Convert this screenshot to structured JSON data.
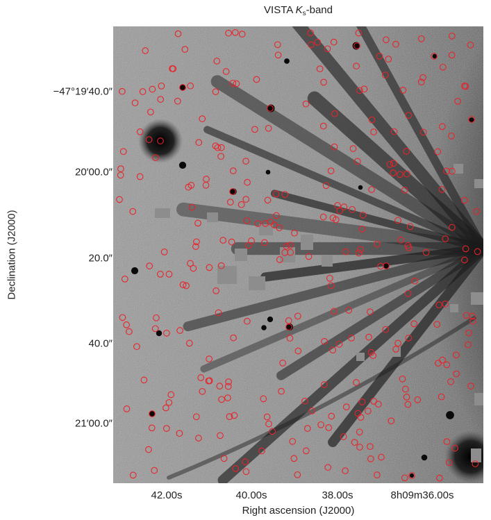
{
  "title": {
    "prefix": "VISTA ",
    "band_main": "K",
    "band_sub": "s",
    "suffix": "-band"
  },
  "axes": {
    "xlabel": "Right ascension (J2000)",
    "ylabel": "Declination (J2000)",
    "x_ticks": [
      "42.00s",
      "40.00s",
      "38.00s",
      "8h09m36.00s"
    ],
    "y_ticks": [
      "−47°19′40.0″",
      "20′00.0″",
      "20.0″",
      "40.0″",
      "21′00.0″"
    ]
  },
  "colors": {
    "marker": "#e8232a",
    "background": "#8a8a8a"
  }
}
